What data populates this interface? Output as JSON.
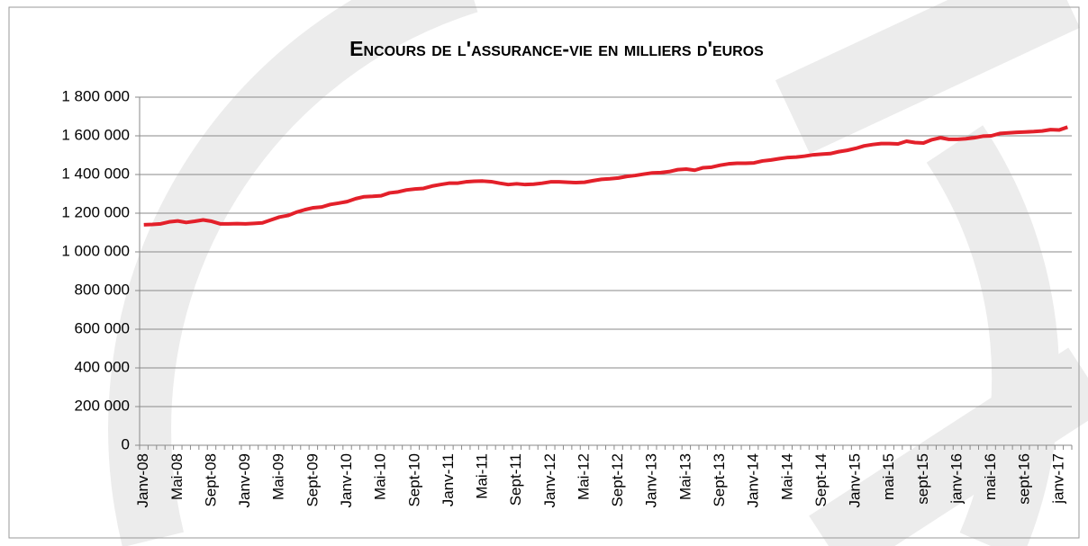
{
  "chart_data": {
    "type": "line",
    "title": "Encours de l'assurance-vie en milliers d'euros",
    "categories": [
      "Janv-08",
      null,
      null,
      null,
      "Mai-08",
      null,
      null,
      null,
      "Sept-08",
      null,
      null,
      null,
      "Janv-09",
      null,
      null,
      null,
      "Mai-09",
      null,
      null,
      null,
      "Sept-09",
      null,
      null,
      null,
      "Janv-10",
      null,
      null,
      null,
      "Mai-10",
      null,
      null,
      null,
      "Sept-10",
      null,
      null,
      null,
      "Janv-11",
      null,
      null,
      null,
      "Mai-11",
      null,
      null,
      null,
      "Sept-11",
      null,
      null,
      null,
      "Janv-12",
      null,
      null,
      null,
      "Mai-12",
      null,
      null,
      null,
      "Sept-12",
      null,
      null,
      null,
      "Janv-13",
      null,
      null,
      null,
      "Mai-13",
      null,
      null,
      null,
      "Sept-13",
      null,
      null,
      null,
      "Janv-14",
      null,
      null,
      null,
      "Mai-14",
      null,
      null,
      null,
      "Sept-14",
      null,
      null,
      null,
      "Janv-15",
      null,
      null,
      null,
      "mai-15",
      null,
      null,
      null,
      "sept-15",
      null,
      null,
      null,
      "janv-16",
      null,
      null,
      null,
      "mai-16",
      null,
      null,
      null,
      "sept-16",
      null,
      null,
      null,
      "janv-17",
      null
    ],
    "series": [
      {
        "color": "#e3202a",
        "values": [
          1140000,
          1142000,
          1145000,
          1155000,
          1160000,
          1152000,
          1158000,
          1165000,
          1158000,
          1145000,
          1145000,
          1146000,
          1145000,
          1147000,
          1150000,
          1165000,
          1180000,
          1188000,
          1205000,
          1218000,
          1228000,
          1232000,
          1245000,
          1252000,
          1260000,
          1275000,
          1285000,
          1287000,
          1290000,
          1305000,
          1310000,
          1320000,
          1325000,
          1328000,
          1340000,
          1348000,
          1355000,
          1355000,
          1362000,
          1365000,
          1366000,
          1363000,
          1355000,
          1348000,
          1352000,
          1348000,
          1350000,
          1355000,
          1362000,
          1362000,
          1360000,
          1358000,
          1360000,
          1368000,
          1375000,
          1378000,
          1382000,
          1390000,
          1395000,
          1402000,
          1408000,
          1410000,
          1415000,
          1425000,
          1428000,
          1422000,
          1435000,
          1438000,
          1448000,
          1455000,
          1458000,
          1458000,
          1460000,
          1470000,
          1475000,
          1482000,
          1488000,
          1490000,
          1495000,
          1502000,
          1505000,
          1508000,
          1518000,
          1525000,
          1535000,
          1548000,
          1555000,
          1560000,
          1560000,
          1558000,
          1572000,
          1565000,
          1563000,
          1580000,
          1590000,
          1582000,
          1582000,
          1585000,
          1590000,
          1598000,
          1600000,
          1612000,
          1615000,
          1618000,
          1620000,
          1622000,
          1625000,
          1632000,
          1630000,
          1645000
        ]
      }
    ],
    "ylim": [
      0,
      1800000
    ],
    "yticks": [
      0,
      {
        "value": 200000,
        "label": "200 000"
      },
      {
        "value": 400000,
        "label": "400 000"
      },
      {
        "value": 600000,
        "label": "600 000"
      },
      {
        "value": 800000,
        "label": "800 000"
      },
      {
        "value": 1000000,
        "label": "1 000 000"
      },
      {
        "value": 1200000,
        "label": "1 200 000"
      },
      {
        "value": 1400000,
        "label": "1 400 000"
      },
      {
        "value": 1600000,
        "label": "1 600 000"
      },
      {
        "value": 1800000,
        "label": "1 800 000"
      }
    ],
    "grid": true
  }
}
